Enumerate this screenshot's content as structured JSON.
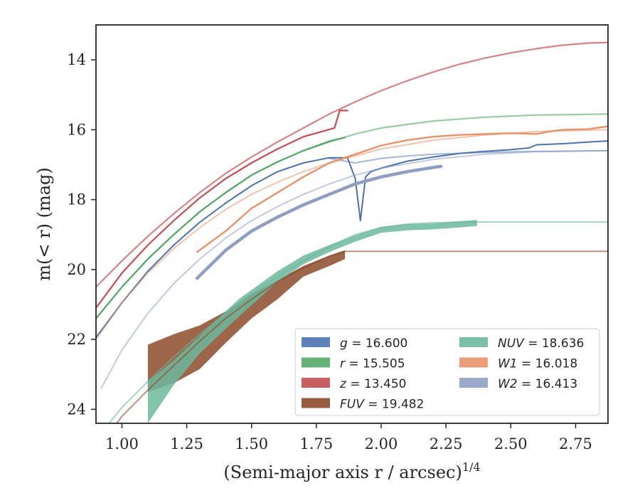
{
  "chart_data": {
    "type": "line",
    "xlabel": "(Semi-major axis r / arcsec)",
    "xlabel_exponent": "1/4",
    "ylabel": "m(< r) (mag)",
    "xlim": [
      0.9,
      2.875
    ],
    "ylim": [
      24.4,
      13.0
    ],
    "y_inverted": true,
    "grid": false,
    "legend_placement": "lower-right",
    "x_ticks": [
      "1.00",
      "1.25",
      "1.50",
      "1.75",
      "2.00",
      "2.25",
      "2.50",
      "2.75"
    ],
    "x_tick_values": [
      1.0,
      1.25,
      1.5,
      1.75,
      2.0,
      2.25,
      2.5,
      2.75
    ],
    "y_ticks": [
      "14",
      "16",
      "18",
      "20",
      "22",
      "24"
    ],
    "y_tick_values": [
      14,
      16,
      18,
      20,
      22,
      24
    ],
    "legend": [
      {
        "var": "g",
        "op": "=",
        "value": "16.600",
        "color": "#4c72b0",
        "italic_var": true
      },
      {
        "var": "r",
        "op": "=",
        "value": "15.505",
        "color": "#55a868",
        "italic_var": true
      },
      {
        "var": "z",
        "op": "=",
        "value": "13.450",
        "color": "#c44e52",
        "italic_var": true
      },
      {
        "var": "FUV",
        "op": "=",
        "value": "19.482",
        "color": "#8c4a2a",
        "italic_var": true
      },
      {
        "var": "NUV",
        "op": "=",
        "value": "18.636",
        "color": "#6cb89c",
        "italic_var": true
      },
      {
        "var": "W1",
        "op": "=",
        "value": "16.018",
        "color": "#e8926a",
        "italic_var": true
      },
      {
        "var": "W2",
        "op": "=",
        "value": "16.413",
        "color": "#8f9fc4",
        "italic_var": true
      }
    ],
    "series": [
      {
        "key": "z_model",
        "color": "#c44e52",
        "opacity": 0.7,
        "width": 2.2,
        "x": [
          0.9,
          1.0,
          1.1,
          1.2,
          1.3,
          1.4,
          1.5,
          1.6,
          1.7,
          1.8,
          1.9,
          2.0,
          2.1,
          2.2,
          2.3,
          2.4,
          2.5,
          2.6,
          2.7,
          2.8,
          2.875
        ],
        "y": [
          20.5,
          19.75,
          19.05,
          18.4,
          17.8,
          17.25,
          16.78,
          16.35,
          15.95,
          15.55,
          15.2,
          14.88,
          14.6,
          14.35,
          14.13,
          13.95,
          13.8,
          13.68,
          13.58,
          13.52,
          13.5
        ]
      },
      {
        "key": "z_obs",
        "color": "#c44e52",
        "opacity": 1.0,
        "width": 2.2,
        "x": [
          0.9,
          1.0,
          1.1,
          1.2,
          1.3,
          1.4,
          1.5,
          1.6,
          1.7,
          1.82,
          1.84,
          1.85,
          1.87
        ],
        "y": [
          21.1,
          20.1,
          19.3,
          18.6,
          17.95,
          17.4,
          16.95,
          16.55,
          16.2,
          15.95,
          15.45,
          15.45,
          15.45
        ]
      },
      {
        "key": "r_model",
        "color": "#55a868",
        "opacity": 0.6,
        "width": 2.2,
        "x": [
          0.9,
          1.0,
          1.1,
          1.2,
          1.3,
          1.4,
          1.5,
          1.6,
          1.7,
          1.8,
          1.9,
          2.0,
          2.2,
          2.4,
          2.6,
          2.875
        ],
        "y": [
          21.4,
          20.5,
          19.7,
          19.0,
          18.35,
          17.8,
          17.3,
          16.92,
          16.6,
          16.35,
          16.12,
          15.95,
          15.75,
          15.64,
          15.58,
          15.55
        ]
      },
      {
        "key": "r_obs",
        "color": "#55a868",
        "opacity": 1.0,
        "width": 2.2,
        "x": [
          0.9,
          1.0,
          1.1,
          1.2,
          1.3,
          1.4,
          1.5,
          1.6,
          1.7,
          1.8,
          1.86
        ],
        "y": [
          21.4,
          20.5,
          19.7,
          19.0,
          18.35,
          17.8,
          17.3,
          16.92,
          16.6,
          16.33,
          16.22
        ]
      },
      {
        "key": "g_model",
        "color": "#4c72b0",
        "opacity": 0.5,
        "width": 2.0,
        "x": [
          1.8,
          1.9,
          2.0,
          2.1,
          2.2,
          2.4,
          2.6,
          2.875
        ],
        "y": [
          16.82,
          16.95,
          16.82,
          16.75,
          16.7,
          16.65,
          16.62,
          16.6
        ]
      },
      {
        "key": "g_obs",
        "color": "#4c72b0",
        "opacity": 1.0,
        "width": 2.0,
        "x": [
          0.9,
          1.0,
          1.1,
          1.2,
          1.3,
          1.4,
          1.5,
          1.6,
          1.7,
          1.8,
          1.83,
          1.87,
          1.9,
          1.92,
          1.94,
          1.96,
          2.0,
          2.05,
          2.1,
          2.2,
          2.3,
          2.4,
          2.5,
          2.57,
          2.6,
          2.7,
          2.8,
          2.875
        ],
        "y": [
          21.95,
          20.95,
          20.05,
          19.3,
          18.65,
          18.1,
          17.6,
          17.2,
          16.95,
          16.8,
          16.8,
          16.8,
          17.4,
          18.6,
          17.35,
          17.2,
          17.1,
          17.0,
          16.9,
          16.78,
          16.68,
          16.62,
          16.57,
          16.52,
          16.43,
          16.4,
          16.35,
          16.32
        ]
      },
      {
        "key": "w1_model",
        "color": "#e8926a",
        "opacity": 0.55,
        "width": 2.0,
        "x": [
          0.9,
          1.0,
          1.1,
          1.2,
          1.3,
          1.4,
          1.5,
          1.6,
          1.7,
          1.8,
          1.9,
          2.0,
          2.2,
          2.4,
          2.6,
          2.875
        ],
        "y": [
          22.0,
          20.95,
          20.1,
          19.4,
          18.8,
          18.28,
          17.85,
          17.5,
          17.2,
          16.95,
          16.75,
          16.55,
          16.3,
          16.15,
          16.05,
          16.0
        ]
      },
      {
        "key": "w1_obs",
        "color": "#e8926a",
        "opacity": 1.0,
        "width": 2.4,
        "x": [
          1.29,
          1.4,
          1.5,
          1.6,
          1.7,
          1.8,
          1.9,
          2.0,
          2.1,
          2.2,
          2.3,
          2.4,
          2.5,
          2.6,
          2.65,
          2.7,
          2.8,
          2.875
        ],
        "y": [
          19.5,
          18.9,
          18.25,
          17.8,
          17.35,
          16.95,
          16.7,
          16.45,
          16.3,
          16.2,
          16.15,
          16.12,
          16.1,
          16.12,
          16.05,
          16.0,
          15.98,
          15.9
        ]
      },
      {
        "key": "w2_model",
        "color": "#8f9fc4",
        "opacity": 0.55,
        "width": 2.0,
        "x": [
          0.92,
          1.0,
          1.1,
          1.2,
          1.3,
          1.4,
          1.5,
          1.6,
          1.7,
          1.8,
          1.9,
          2.0,
          2.2,
          2.4,
          2.6,
          2.875
        ],
        "y": [
          23.4,
          22.3,
          21.25,
          20.4,
          19.7,
          19.1,
          18.6,
          18.2,
          17.85,
          17.55,
          17.3,
          17.1,
          16.85,
          16.7,
          16.63,
          16.6
        ]
      },
      {
        "key": "w2_obs",
        "color": "#8f9fc4",
        "opacity": 1.0,
        "width": 4.5,
        "x": [
          1.29,
          1.4,
          1.5,
          1.6,
          1.7,
          1.8,
          1.9,
          2.0,
          2.1,
          2.2,
          2.23
        ],
        "y": [
          20.25,
          19.45,
          18.9,
          18.5,
          18.15,
          17.85,
          17.55,
          17.35,
          17.2,
          17.08,
          17.05
        ]
      },
      {
        "key": "nuv_model",
        "color": "#6cb89c",
        "opacity": 0.6,
        "width": 2.0,
        "x": [
          0.95,
          1.0,
          1.1,
          1.2,
          1.3,
          1.4,
          1.5,
          1.6,
          1.7,
          1.8,
          1.9,
          2.0,
          2.1,
          2.2,
          2.3,
          2.37,
          2.6,
          2.875
        ],
        "y": [
          24.4,
          23.95,
          23.2,
          22.5,
          21.85,
          21.25,
          20.7,
          20.2,
          19.75,
          19.35,
          19.0,
          18.8,
          18.7,
          18.66,
          18.64,
          18.64,
          18.64,
          18.64
        ]
      },
      {
        "key": "fuv_model",
        "color": "#8c4a2a",
        "opacity": 0.6,
        "width": 2.0,
        "x": [
          0.98,
          1.0,
          1.1,
          1.2,
          1.3,
          1.4,
          1.5,
          1.6,
          1.7,
          1.8,
          1.86,
          2.0,
          2.3,
          2.875
        ],
        "y": [
          24.4,
          24.2,
          23.45,
          22.75,
          22.05,
          21.4,
          20.85,
          20.35,
          19.95,
          19.62,
          19.48,
          19.48,
          19.48,
          19.48
        ]
      }
    ],
    "bands": [
      {
        "key": "fuv_band",
        "color": "#8c4a2a",
        "opacity": 0.85,
        "x": [
          1.1,
          1.2,
          1.3,
          1.4,
          1.5,
          1.6,
          1.7,
          1.8,
          1.86
        ],
        "y_upper": [
          22.15,
          21.85,
          21.6,
          21.2,
          20.7,
          20.3,
          19.9,
          19.6,
          19.45
        ],
        "y_lower": [
          23.5,
          23.25,
          22.85,
          22.1,
          21.4,
          20.85,
          20.2,
          19.9,
          19.7
        ]
      },
      {
        "key": "nuv_band",
        "color": "#6cb89c",
        "opacity": 0.85,
        "x": [
          1.1,
          1.2,
          1.3,
          1.45,
          1.6,
          1.7,
          1.8,
          1.9,
          2.0,
          2.1,
          2.2,
          2.3,
          2.37
        ],
        "y_upper": [
          23.2,
          22.6,
          21.9,
          20.85,
          20.05,
          19.6,
          19.3,
          19.02,
          18.78,
          18.7,
          18.68,
          18.62,
          18.58
        ],
        "y_lower": [
          24.4,
          23.3,
          22.4,
          21.35,
          20.35,
          19.85,
          19.5,
          19.2,
          18.95,
          18.88,
          18.85,
          18.8,
          18.75
        ]
      }
    ]
  }
}
